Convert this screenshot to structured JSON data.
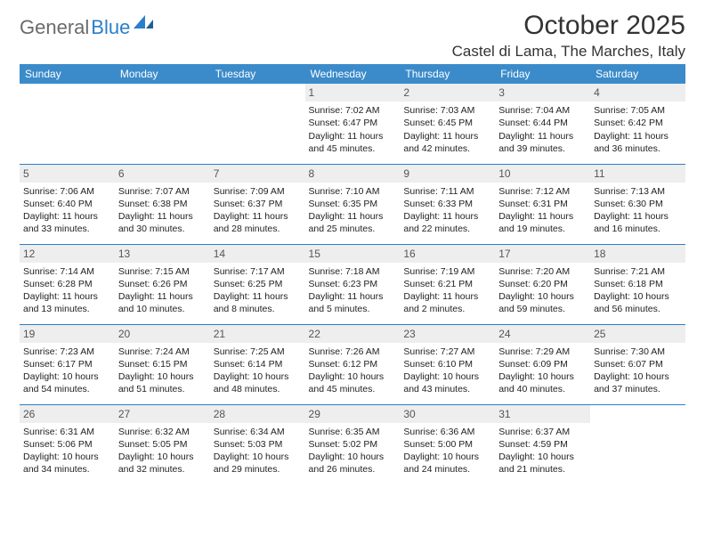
{
  "brand": {
    "text1": "General",
    "text2": "Blue",
    "color1": "#6b6b6b",
    "color2": "#2a7fc9"
  },
  "header": {
    "month": "October 2025",
    "location": "Castel di Lama, The Marches, Italy"
  },
  "style": {
    "header_bg": "#3b8bca",
    "header_text": "#ffffff",
    "daynum_bg": "#eeeeee",
    "rule_color": "#2a7fc9",
    "page_bg": "#ffffff",
    "text_color": "#222222"
  },
  "weekdays": [
    "Sunday",
    "Monday",
    "Tuesday",
    "Wednesday",
    "Thursday",
    "Friday",
    "Saturday"
  ],
  "weeks": [
    [
      null,
      null,
      null,
      {
        "n": "1",
        "sr": "7:02 AM",
        "ss": "6:47 PM",
        "dl": "11 hours and 45 minutes."
      },
      {
        "n": "2",
        "sr": "7:03 AM",
        "ss": "6:45 PM",
        "dl": "11 hours and 42 minutes."
      },
      {
        "n": "3",
        "sr": "7:04 AM",
        "ss": "6:44 PM",
        "dl": "11 hours and 39 minutes."
      },
      {
        "n": "4",
        "sr": "7:05 AM",
        "ss": "6:42 PM",
        "dl": "11 hours and 36 minutes."
      }
    ],
    [
      {
        "n": "5",
        "sr": "7:06 AM",
        "ss": "6:40 PM",
        "dl": "11 hours and 33 minutes."
      },
      {
        "n": "6",
        "sr": "7:07 AM",
        "ss": "6:38 PM",
        "dl": "11 hours and 30 minutes."
      },
      {
        "n": "7",
        "sr": "7:09 AM",
        "ss": "6:37 PM",
        "dl": "11 hours and 28 minutes."
      },
      {
        "n": "8",
        "sr": "7:10 AM",
        "ss": "6:35 PM",
        "dl": "11 hours and 25 minutes."
      },
      {
        "n": "9",
        "sr": "7:11 AM",
        "ss": "6:33 PM",
        "dl": "11 hours and 22 minutes."
      },
      {
        "n": "10",
        "sr": "7:12 AM",
        "ss": "6:31 PM",
        "dl": "11 hours and 19 minutes."
      },
      {
        "n": "11",
        "sr": "7:13 AM",
        "ss": "6:30 PM",
        "dl": "11 hours and 16 minutes."
      }
    ],
    [
      {
        "n": "12",
        "sr": "7:14 AM",
        "ss": "6:28 PM",
        "dl": "11 hours and 13 minutes."
      },
      {
        "n": "13",
        "sr": "7:15 AM",
        "ss": "6:26 PM",
        "dl": "11 hours and 10 minutes."
      },
      {
        "n": "14",
        "sr": "7:17 AM",
        "ss": "6:25 PM",
        "dl": "11 hours and 8 minutes."
      },
      {
        "n": "15",
        "sr": "7:18 AM",
        "ss": "6:23 PM",
        "dl": "11 hours and 5 minutes."
      },
      {
        "n": "16",
        "sr": "7:19 AM",
        "ss": "6:21 PM",
        "dl": "11 hours and 2 minutes."
      },
      {
        "n": "17",
        "sr": "7:20 AM",
        "ss": "6:20 PM",
        "dl": "10 hours and 59 minutes."
      },
      {
        "n": "18",
        "sr": "7:21 AM",
        "ss": "6:18 PM",
        "dl": "10 hours and 56 minutes."
      }
    ],
    [
      {
        "n": "19",
        "sr": "7:23 AM",
        "ss": "6:17 PM",
        "dl": "10 hours and 54 minutes."
      },
      {
        "n": "20",
        "sr": "7:24 AM",
        "ss": "6:15 PM",
        "dl": "10 hours and 51 minutes."
      },
      {
        "n": "21",
        "sr": "7:25 AM",
        "ss": "6:14 PM",
        "dl": "10 hours and 48 minutes."
      },
      {
        "n": "22",
        "sr": "7:26 AM",
        "ss": "6:12 PM",
        "dl": "10 hours and 45 minutes."
      },
      {
        "n": "23",
        "sr": "7:27 AM",
        "ss": "6:10 PM",
        "dl": "10 hours and 43 minutes."
      },
      {
        "n": "24",
        "sr": "7:29 AM",
        "ss": "6:09 PM",
        "dl": "10 hours and 40 minutes."
      },
      {
        "n": "25",
        "sr": "7:30 AM",
        "ss": "6:07 PM",
        "dl": "10 hours and 37 minutes."
      }
    ],
    [
      {
        "n": "26",
        "sr": "6:31 AM",
        "ss": "5:06 PM",
        "dl": "10 hours and 34 minutes."
      },
      {
        "n": "27",
        "sr": "6:32 AM",
        "ss": "5:05 PM",
        "dl": "10 hours and 32 minutes."
      },
      {
        "n": "28",
        "sr": "6:34 AM",
        "ss": "5:03 PM",
        "dl": "10 hours and 29 minutes."
      },
      {
        "n": "29",
        "sr": "6:35 AM",
        "ss": "5:02 PM",
        "dl": "10 hours and 26 minutes."
      },
      {
        "n": "30",
        "sr": "6:36 AM",
        "ss": "5:00 PM",
        "dl": "10 hours and 24 minutes."
      },
      {
        "n": "31",
        "sr": "6:37 AM",
        "ss": "4:59 PM",
        "dl": "10 hours and 21 minutes."
      },
      null
    ]
  ],
  "labels": {
    "sunrise": "Sunrise: ",
    "sunset": "Sunset: ",
    "daylight": "Daylight: "
  }
}
